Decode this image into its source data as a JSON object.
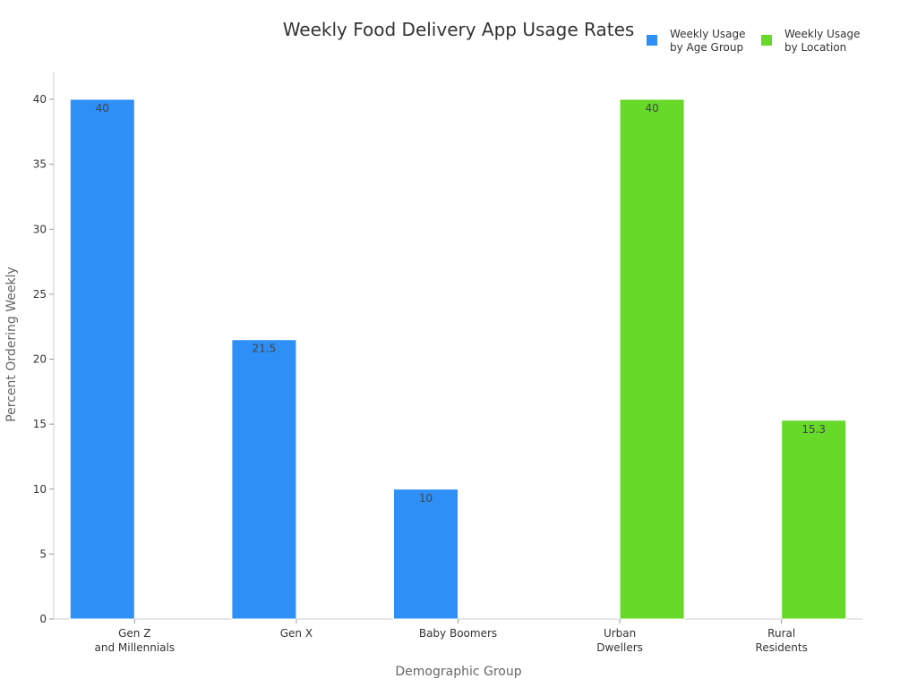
{
  "chart_data": {
    "type": "bar",
    "title": "Weekly Food Delivery App Usage Rates",
    "xlabel": "Demographic Group",
    "ylabel": "Percent Ordering Weekly",
    "ylim": [
      0,
      42
    ],
    "yticks": [
      0,
      5,
      10,
      15,
      20,
      25,
      30,
      35,
      40
    ],
    "grid": false,
    "legend_position": "top-right",
    "categories": [
      [
        "Gen Z",
        "and Millennials"
      ],
      [
        "Gen X"
      ],
      [
        "Baby Boomers"
      ],
      [
        "Urban",
        "Dwellers"
      ],
      [
        "Rural",
        "Residents"
      ]
    ],
    "series": [
      {
        "name": [
          "Weekly Usage",
          "by Age Group"
        ],
        "color": "#2e90f7",
        "values": [
          40,
          21.5,
          10,
          null,
          null
        ],
        "labels": [
          "40",
          "21.5",
          "10",
          "",
          ""
        ]
      },
      {
        "name": [
          "Weekly Usage",
          "by Location"
        ],
        "color": "#66d929",
        "values": [
          null,
          null,
          null,
          40,
          15.3
        ],
        "labels": [
          "",
          "",
          "",
          "40",
          "15.3"
        ]
      }
    ]
  }
}
